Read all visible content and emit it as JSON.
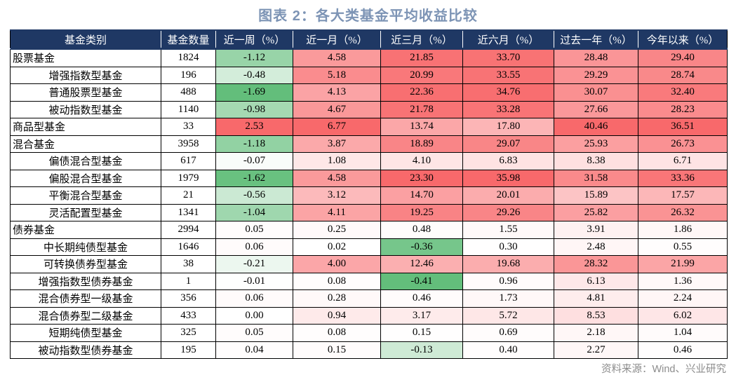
{
  "title": "图表 2：各大类基金平均收益比较",
  "source": "资料来源：Wind、兴业研究",
  "colors": {
    "header_bg": "#1F3864",
    "header_text": "#FFFFFF",
    "title_text": "#7D94B5",
    "source_text": "#8C8C8C",
    "scale_negative_green": "#63BE7B",
    "scale_positive_red": "#F8696B",
    "scale_zero_white": "#FFFFFF",
    "cell_border": "#000000"
  },
  "chart_data": {
    "type": "table",
    "title": "图表 2：各大类基金平均收益比较",
    "heatmap": "per-column: negative values shade white→green by v/min, positive values shade white→red by v/max",
    "columns": [
      "基金类别",
      "基金数量",
      "近一周（%）",
      "近一月（%）",
      "近三月（%）",
      "近六月（%）",
      "过去一年（%）",
      "今年以来（%）"
    ],
    "rows": [
      {
        "category": "股票基金",
        "indent": 0,
        "count": 1824,
        "values": [
          -1.12,
          4.58,
          21.85,
          33.7,
          28.48,
          29.4
        ]
      },
      {
        "category": "增强指数型基金",
        "indent": 1,
        "count": 196,
        "values": [
          -0.48,
          5.18,
          20.99,
          33.55,
          29.29,
          28.74
        ]
      },
      {
        "category": "普通股票型基金",
        "indent": 1,
        "count": 488,
        "values": [
          -1.69,
          4.13,
          22.36,
          34.76,
          30.07,
          32.4
        ]
      },
      {
        "category": "被动指数型基金",
        "indent": 1,
        "count": 1140,
        "values": [
          -0.98,
          4.67,
          21.78,
          33.28,
          27.66,
          28.23
        ]
      },
      {
        "category": "商品型基金",
        "indent": 0,
        "count": 33,
        "values": [
          2.53,
          6.77,
          13.74,
          17.8,
          40.46,
          36.51
        ]
      },
      {
        "category": "混合基金",
        "indent": 0,
        "count": 3958,
        "values": [
          -1.18,
          3.87,
          18.89,
          29.07,
          25.93,
          26.73
        ]
      },
      {
        "category": "偏债混合型基金",
        "indent": 1,
        "count": 617,
        "values": [
          -0.07,
          1.08,
          4.1,
          6.83,
          8.38,
          6.71
        ]
      },
      {
        "category": "偏股混合型基金",
        "indent": 1,
        "count": 1979,
        "values": [
          -1.62,
          4.58,
          23.3,
          35.98,
          31.58,
          33.36
        ]
      },
      {
        "category": "平衡混合型基金",
        "indent": 1,
        "count": 21,
        "values": [
          -0.56,
          3.12,
          14.7,
          20.01,
          15.89,
          17.57
        ]
      },
      {
        "category": "灵活配置型基金",
        "indent": 1,
        "count": 1341,
        "values": [
          -1.04,
          4.11,
          19.25,
          29.26,
          25.82,
          26.32
        ]
      },
      {
        "category": "债券基金",
        "indent": 0,
        "count": 2994,
        "values": [
          0.05,
          0.25,
          0.48,
          1.55,
          3.91,
          1.86
        ]
      },
      {
        "category": "中长期纯债型基金",
        "indent": 1,
        "count": 1646,
        "values": [
          0.06,
          0.02,
          -0.36,
          0.3,
          2.48,
          0.55
        ]
      },
      {
        "category": "可转换债券型基金",
        "indent": 1,
        "count": 38,
        "values": [
          -0.21,
          4.0,
          12.46,
          19.68,
          28.32,
          21.99
        ]
      },
      {
        "category": "增强指数型债券基金",
        "indent": 1,
        "count": 1,
        "values": [
          -0.01,
          0.08,
          -0.41,
          0.96,
          6.13,
          1.36
        ]
      },
      {
        "category": "混合债券型一级基金",
        "indent": 1,
        "count": 356,
        "values": [
          0.06,
          0.28,
          0.46,
          1.73,
          4.81,
          2.24
        ]
      },
      {
        "category": "混合债券型二级基金",
        "indent": 1,
        "count": 433,
        "values": [
          0.0,
          0.94,
          3.17,
          5.72,
          8.53,
          6.02
        ]
      },
      {
        "category": "短期纯债型基金",
        "indent": 1,
        "count": 325,
        "values": [
          0.05,
          0.08,
          0.15,
          0.69,
          2.18,
          1.04
        ]
      },
      {
        "category": "被动指数型债券基金",
        "indent": 1,
        "count": 195,
        "values": [
          0.04,
          0.15,
          -0.13,
          0.4,
          2.27,
          0.46
        ]
      }
    ]
  }
}
